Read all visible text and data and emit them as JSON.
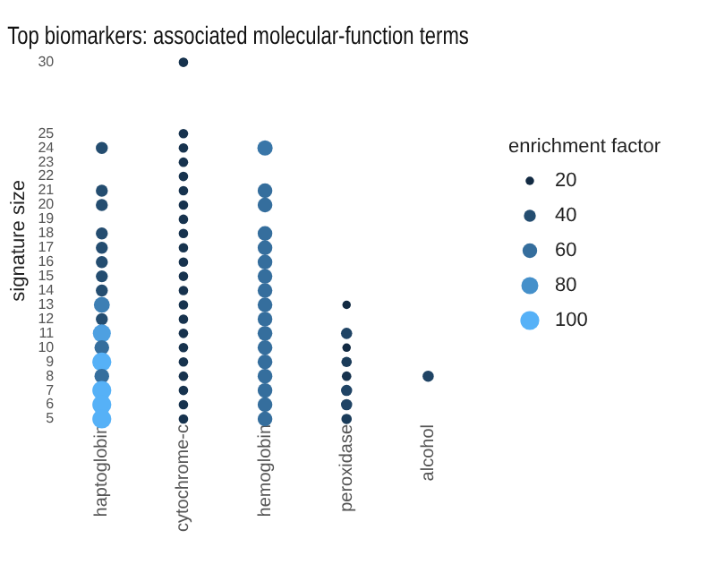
{
  "chart_data": {
    "type": "bubble",
    "title": "Top biomarkers: associated molecular-function terms",
    "ylabel": "signature size",
    "legend_title": "enrichment factor",
    "grid": false,
    "categories": [
      "haptoglobin",
      "cytochrome-c",
      "hemoglobin",
      "peroxidase",
      "alcohol"
    ],
    "ylim": [
      5,
      30
    ],
    "yticks": [
      5,
      6,
      7,
      8,
      9,
      10,
      11,
      12,
      13,
      14,
      15,
      16,
      17,
      18,
      19,
      20,
      21,
      22,
      23,
      24,
      25,
      30
    ],
    "size_legend": [
      20,
      40,
      60,
      80,
      100
    ],
    "series": [
      {
        "x": [
          "haptoglobin",
          "haptoglobin",
          "haptoglobin",
          "haptoglobin",
          "haptoglobin",
          "haptoglobin",
          "haptoglobin",
          "haptoglobin",
          "haptoglobin",
          "haptoglobin",
          "haptoglobin",
          "haptoglobin",
          "haptoglobin",
          "haptoglobin",
          "haptoglobin",
          "haptoglobin",
          "haptoglobin"
        ],
        "values": [
          24,
          21,
          20,
          18,
          17,
          16,
          15,
          14,
          13,
          12,
          11,
          10,
          9,
          8,
          7,
          6,
          5
        ],
        "sizes": [
          40,
          40,
          40,
          40,
          40,
          40,
          40,
          40,
          70,
          40,
          90,
          60,
          100,
          60,
          100,
          100,
          100
        ],
        "colors": [
          "#244d70",
          "#244d70",
          "#244d70",
          "#244d70",
          "#244d70",
          "#244d70",
          "#244d70",
          "#244d70",
          "#3d7fb4",
          "#244d70",
          "#4ea0e1",
          "#356e9d",
          "#56b1f7",
          "#356e9d",
          "#56b1f7",
          "#56b1f7",
          "#56b1f7"
        ]
      },
      {
        "x": [
          "cytochrome-c",
          "cytochrome-c",
          "cytochrome-c",
          "cytochrome-c",
          "cytochrome-c",
          "cytochrome-c",
          "cytochrome-c",
          "cytochrome-c",
          "cytochrome-c",
          "cytochrome-c",
          "cytochrome-c",
          "cytochrome-c",
          "cytochrome-c",
          "cytochrome-c",
          "cytochrome-c",
          "cytochrome-c",
          "cytochrome-c",
          "cytochrome-c",
          "cytochrome-c",
          "cytochrome-c",
          "cytochrome-c",
          "cytochrome-c"
        ],
        "values": [
          30,
          25,
          24,
          23,
          22,
          21,
          20,
          19,
          18,
          17,
          16,
          15,
          14,
          13,
          12,
          11,
          10,
          9,
          8,
          7,
          6,
          5
        ],
        "sizes": [
          25,
          25,
          25,
          25,
          25,
          25,
          25,
          25,
          25,
          25,
          25,
          25,
          25,
          25,
          25,
          25,
          25,
          25,
          25,
          25,
          25,
          25
        ],
        "color": "#17334e"
      },
      {
        "x": [
          "hemoglobin",
          "hemoglobin",
          "hemoglobin",
          "hemoglobin",
          "hemoglobin",
          "hemoglobin",
          "hemoglobin",
          "hemoglobin",
          "hemoglobin",
          "hemoglobin",
          "hemoglobin",
          "hemoglobin",
          "hemoglobin",
          "hemoglobin",
          "hemoglobin",
          "hemoglobin",
          "hemoglobin"
        ],
        "values": [
          24,
          21,
          20,
          18,
          17,
          16,
          15,
          14,
          13,
          12,
          11,
          10,
          9,
          8,
          7,
          6,
          5
        ],
        "sizes": [
          65,
          60,
          60,
          60,
          60,
          60,
          60,
          60,
          60,
          60,
          60,
          60,
          60,
          60,
          60,
          60,
          60
        ],
        "colors": [
          "#3976a8",
          "#356e9d",
          "#356e9d",
          "#356e9d",
          "#356e9d",
          "#356e9d",
          "#356e9d",
          "#356e9d",
          "#356e9d",
          "#356e9d",
          "#356e9d",
          "#356e9d",
          "#356e9d",
          "#356e9d",
          "#356e9d",
          "#356e9d",
          "#356e9d"
        ]
      },
      {
        "x": [
          "peroxidase",
          "peroxidase",
          "peroxidase",
          "peroxidase",
          "peroxidase",
          "peroxidase",
          "peroxidase",
          "peroxidase"
        ],
        "values": [
          13,
          11,
          10,
          9,
          8,
          7,
          6,
          5
        ],
        "sizes": [
          20,
          35,
          20,
          30,
          25,
          35,
          35,
          30
        ],
        "colors": [
          "#132b43",
          "#204465",
          "#132b43",
          "#1b3c5a",
          "#17334e",
          "#204465",
          "#204465",
          "#1b3c5a"
        ]
      },
      {
        "x": [
          "alcohol"
        ],
        "values": [
          8
        ],
        "sizes": [
          35
        ],
        "color": "#204465"
      }
    ]
  }
}
